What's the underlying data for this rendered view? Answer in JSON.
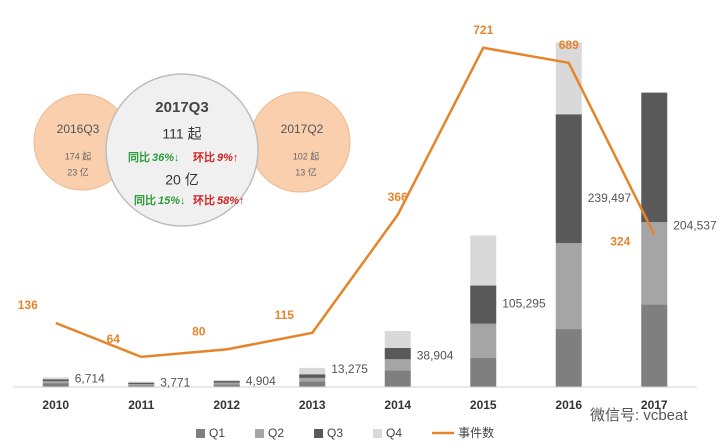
{
  "chart_data": {
    "type": "bar",
    "categories": [
      "2010",
      "2011",
      "2012",
      "2013",
      "2014",
      "2015",
      "2016",
      "2017"
    ],
    "series": [
      {
        "name": "Q1",
        "color": "#7f7f7f",
        "values": [
          2700,
          1130,
          1890,
          3790,
          11420,
          20140,
          40260,
          57270
        ]
      },
      {
        "name": "Q2",
        "color": "#a5a5a5",
        "values": [
          1300,
          940,
          1130,
          2530,
          7850,
          23800,
          59700,
          57270
        ]
      },
      {
        "name": "Q3",
        "color": "#595959",
        "values": [
          1400,
          940,
          1130,
          2530,
          7850,
          26550,
          89550,
          89997
        ]
      },
      {
        "name": "Q4",
        "color": "#d9d9d9",
        "values": [
          1314,
          761,
          754,
          4425,
          11784,
          34805,
          49987,
          null
        ]
      },
      {
        "name": "事件数",
        "type": "line",
        "axis": "y2",
        "color": "#e5852b",
        "values": [
          136,
          64,
          80,
          115,
          366,
          721,
          689,
          324
        ]
      }
    ],
    "totals": [
      6714,
      3771,
      4904,
      13275,
      38904,
      105295,
      239497,
      204537
    ],
    "total_labels": [
      "6,714",
      "3,771",
      "4,904",
      "13,275",
      "38,904",
      "105,295",
      "239,497",
      "204,537"
    ],
    "ylim": [
      0,
      255000
    ],
    "y2lim": [
      0,
      780
    ],
    "legend": "bottom"
  },
  "infographic": {
    "left": {
      "title": "2016Q3",
      "count": "174 起",
      "amount": "23 亿"
    },
    "right": {
      "title": "2017Q2",
      "count": "102 起",
      "amount": "13 亿"
    },
    "center": {
      "title": "2017Q3",
      "count": "111 起",
      "amount": "20 亿",
      "yoy_label": "同比",
      "qoq_label": "环比",
      "count_yoy": "36%↓",
      "count_qoq": "9%↑",
      "amount_yoy": "15%↓",
      "amount_qoq": "58%↑"
    }
  },
  "watermark": "微信号: vcbeat"
}
